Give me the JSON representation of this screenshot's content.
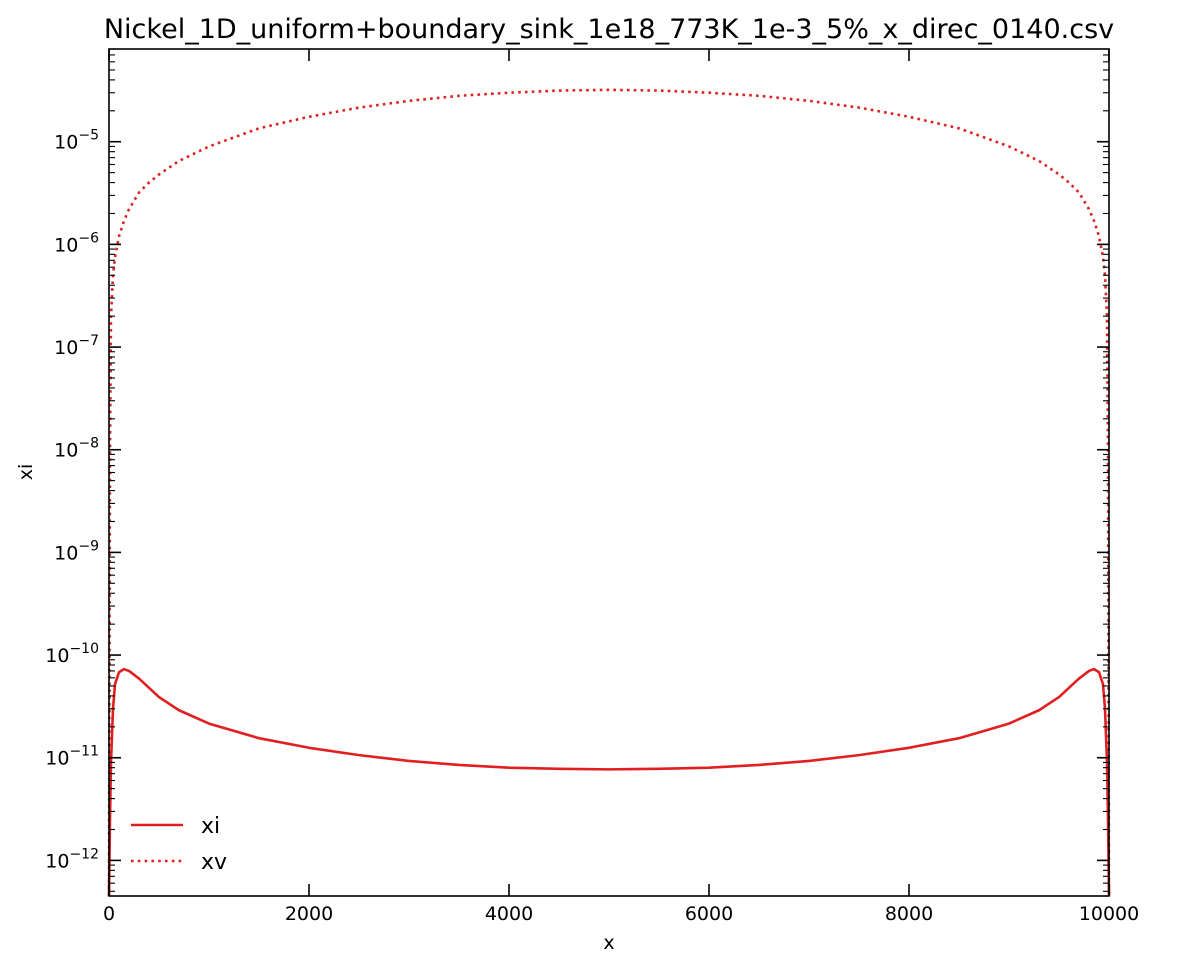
{
  "chart_data": {
    "type": "line",
    "title": "Nickel_1D_uniform+boundary_sink_1e18_773K_1e-3_5%_x_direc_0140.csv",
    "xlabel": "x",
    "ylabel": "xi",
    "xlim": [
      0,
      10000
    ],
    "ylim": [
      4.5e-13,
      8e-05
    ],
    "yscale": "log",
    "grid": false,
    "legend_position": "lower-left",
    "x_ticks": [
      0,
      2000,
      4000,
      6000,
      8000,
      10000
    ],
    "x_tick_labels": [
      "0",
      "2000",
      "4000",
      "6000",
      "8000",
      "10000"
    ],
    "y_ticks": [
      {
        "value": 1e-12,
        "mantissa": "10",
        "exp": "−12"
      },
      {
        "value": 1e-11,
        "mantissa": "10",
        "exp": "−11"
      },
      {
        "value": 1e-10,
        "mantissa": "10",
        "exp": "−10"
      },
      {
        "value": 1e-09,
        "mantissa": "10",
        "exp": "−9"
      },
      {
        "value": 1e-08,
        "mantissa": "10",
        "exp": "−8"
      },
      {
        "value": 1e-07,
        "mantissa": "10",
        "exp": "−7"
      },
      {
        "value": 1e-06,
        "mantissa": "10",
        "exp": "−6"
      },
      {
        "value": 1e-05,
        "mantissa": "10",
        "exp": "−5"
      }
    ],
    "series": [
      {
        "name": "xi",
        "style": "solid",
        "color": "#e02020",
        "x": [
          0,
          10,
          20,
          40,
          60,
          100,
          150,
          200,
          300,
          400,
          500,
          700,
          1000,
          1500,
          2000,
          2500,
          3000,
          3500,
          4000,
          4500,
          5000,
          5500,
          6000,
          6500,
          7000,
          7500,
          8000,
          8500,
          9000,
          9300,
          9500,
          9600,
          9700,
          9800,
          9850,
          9900,
          9940,
          9960,
          9980,
          9990,
          10000
        ],
        "y": [
          4.5e-13,
          2.5e-12,
          9e-12,
          3e-11,
          5.2e-11,
          6.8e-11,
          7.3e-11,
          7e-11,
          5.9e-11,
          4.8e-11,
          3.9e-11,
          2.9e-11,
          2.15e-11,
          1.55e-11,
          1.25e-11,
          1.06e-11,
          9.3e-12,
          8.5e-12,
          8e-12,
          7.8e-12,
          7.7e-12,
          7.8e-12,
          8e-12,
          8.5e-12,
          9.3e-12,
          1.06e-11,
          1.25e-11,
          1.55e-11,
          2.15e-11,
          2.9e-11,
          3.9e-11,
          4.8e-11,
          5.9e-11,
          7e-11,
          7.3e-11,
          6.8e-11,
          5.2e-11,
          3e-11,
          9e-12,
          2.5e-12,
          4.5e-13
        ]
      },
      {
        "name": "xv",
        "style": "dotted",
        "color": "#e02020",
        "x": [
          0,
          5,
          10,
          20,
          40,
          60,
          100,
          150,
          200,
          300,
          400,
          500,
          700,
          1000,
          1500,
          2000,
          2500,
          3000,
          3500,
          4000,
          4500,
          5000,
          5500,
          6000,
          6500,
          7000,
          7500,
          8000,
          8500,
          9000,
          9300,
          9500,
          9600,
          9700,
          9800,
          9850,
          9900,
          9940,
          9960,
          9980,
          9990,
          9995,
          10000
        ],
        "y": [
          4.5e-13,
          1e-10,
          1e-08,
          2e-07,
          5e-07,
          7.5e-07,
          1.2e-06,
          1.7e-06,
          2.2e-06,
          3.2e-06,
          4e-06,
          4.8e-06,
          6.5e-06,
          9e-06,
          1.35e-05,
          1.75e-05,
          2.15e-05,
          2.5e-05,
          2.8e-05,
          3e-05,
          3.15e-05,
          3.2e-05,
          3.15e-05,
          3e-05,
          2.8e-05,
          2.5e-05,
          2.15e-05,
          1.75e-05,
          1.35e-05,
          9e-06,
          6.5e-06,
          4.8e-06,
          4e-06,
          3.2e-06,
          2.2e-06,
          1.7e-06,
          1.2e-06,
          7.5e-07,
          5e-07,
          2e-07,
          1e-08,
          1e-10,
          4.5e-13
        ]
      }
    ]
  }
}
